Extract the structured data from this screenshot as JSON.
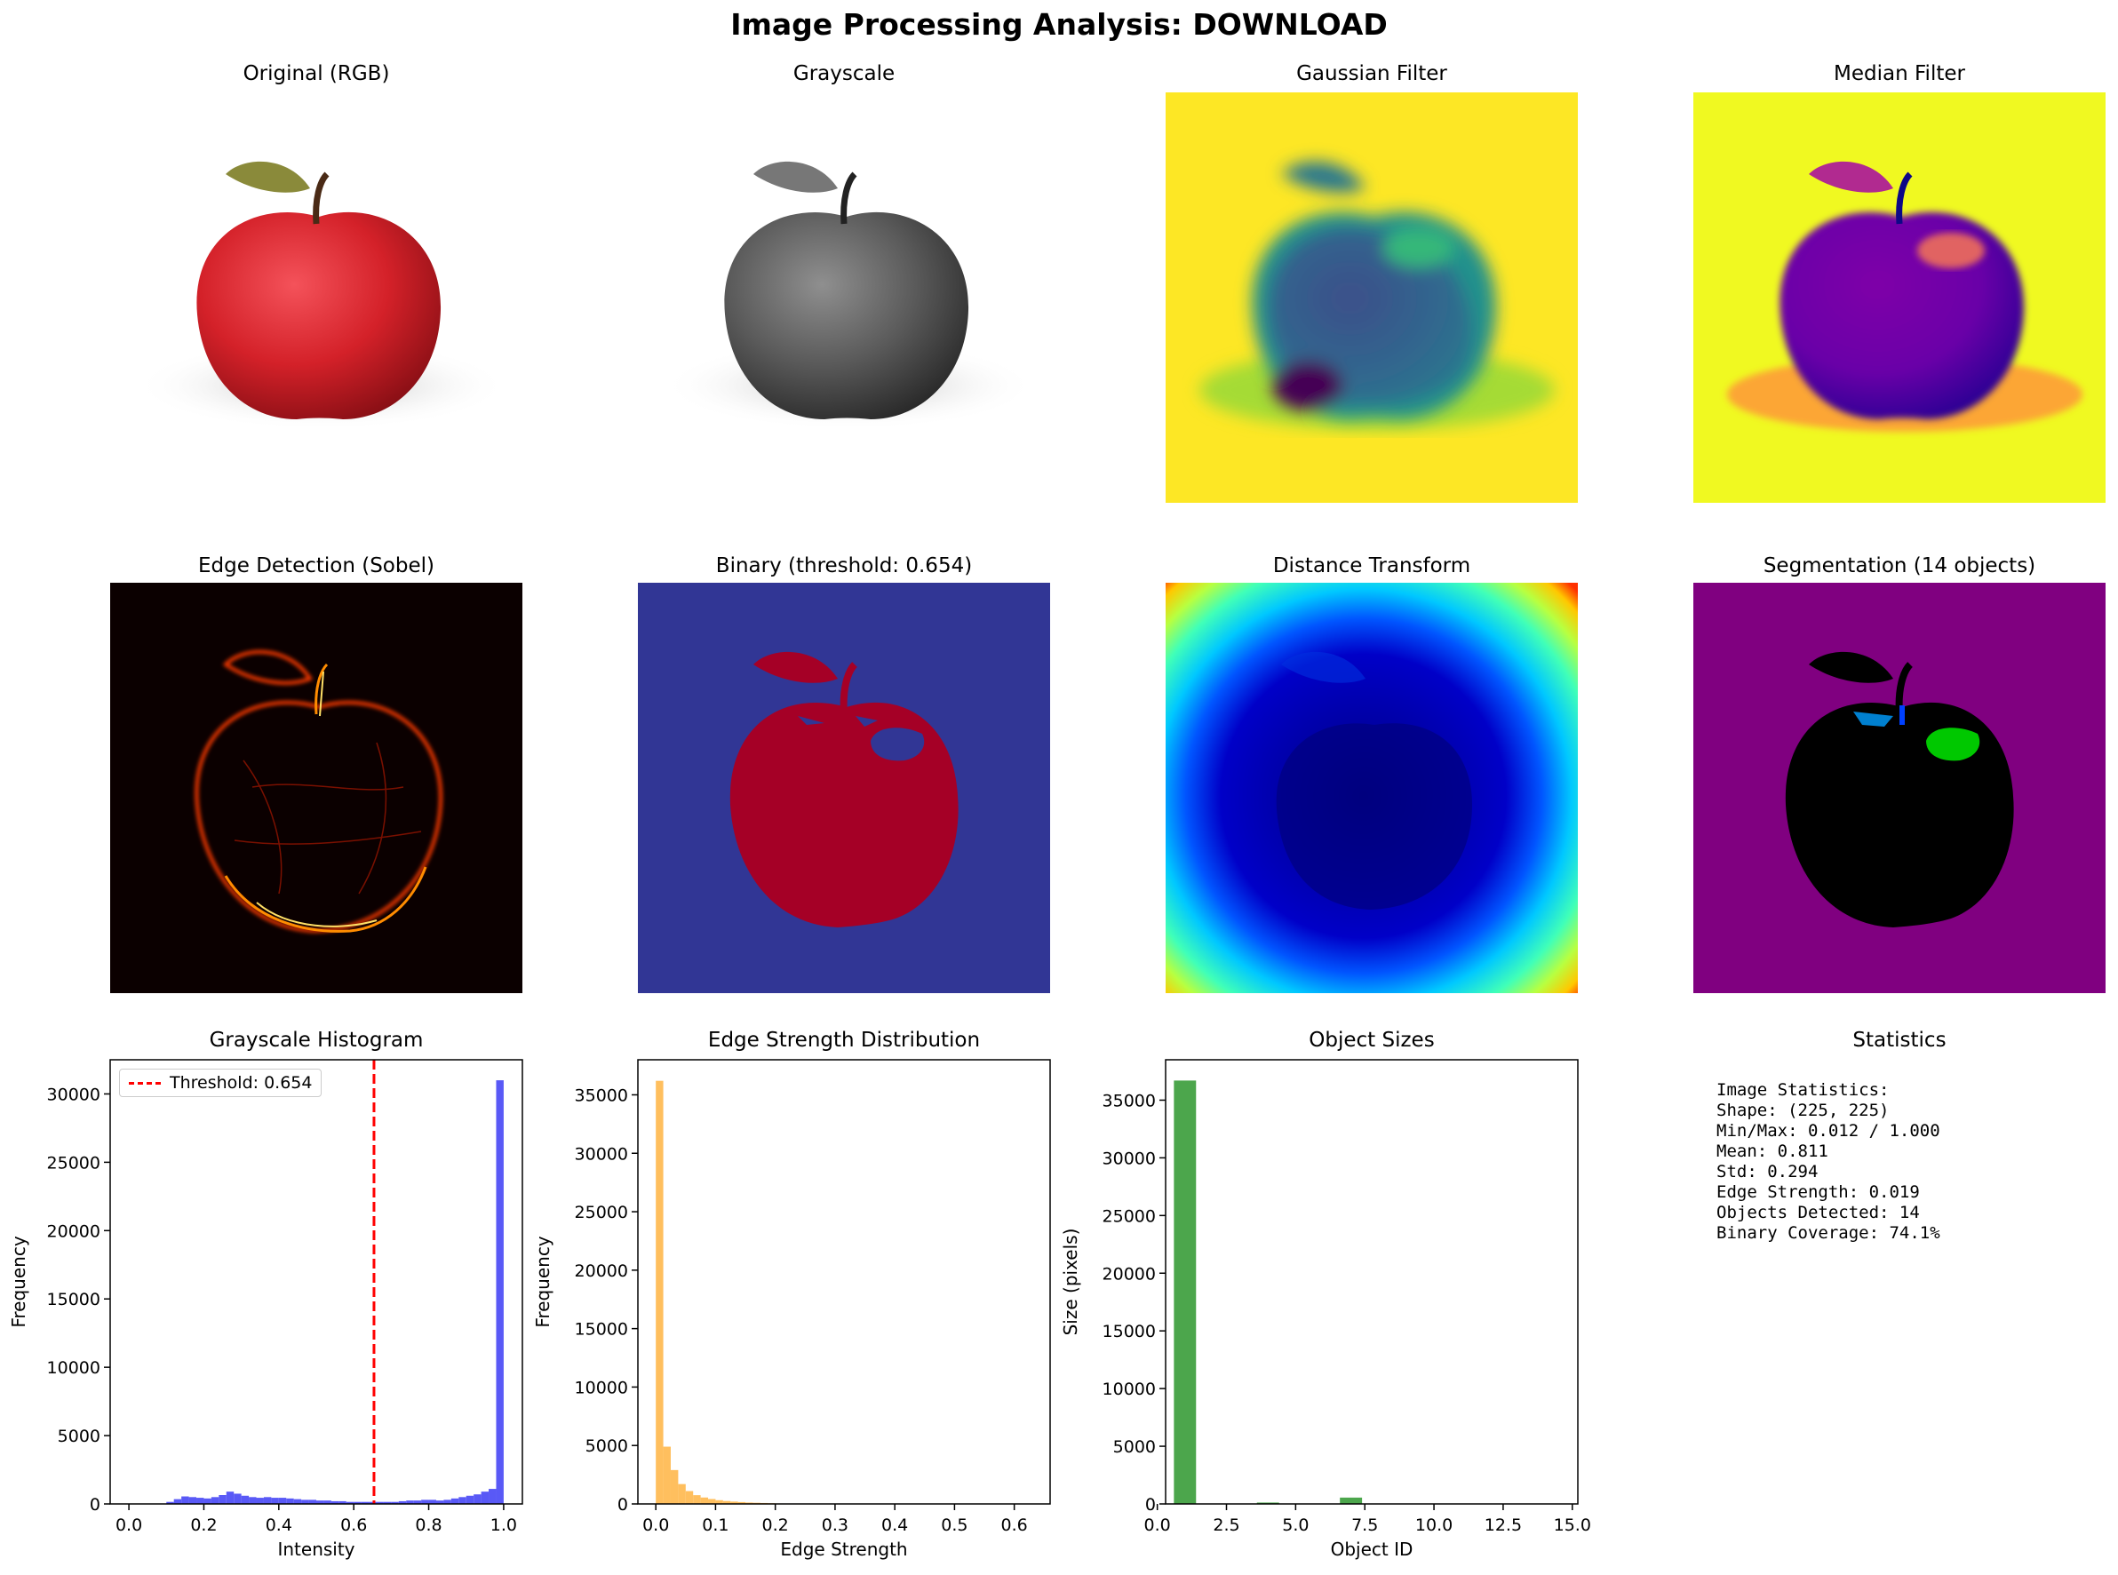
{
  "suptitle": "Image Processing Analysis: DOWNLOAD",
  "panels": {
    "original": "Original (RGB)",
    "grayscale": "Grayscale",
    "gaussian": "Gaussian Filter",
    "median": "Median Filter",
    "edge": "Edge Detection (Sobel)",
    "binary": "Binary (threshold: 0.654)",
    "distance": "Distance Transform",
    "segmentation": "Segmentation (14 objects)",
    "statistics": "Statistics"
  },
  "stats_lines": [
    "Image Statistics:",
    "Shape: (225, 225)",
    "Min/Max: 0.012 / 1.000",
    "Mean: 0.811",
    "Std: 0.294",
    "Edge Strength: 0.019",
    "Objects Detected: 14",
    "Binary Coverage: 74.1%"
  ],
  "colors": {
    "hist_blue": "#5050f5",
    "edge_orange": "#ffb84d",
    "size_green": "#4ca64c",
    "threshold_red": "#ff0000"
  },
  "chart_data": [
    {
      "type": "bar",
      "title": "Grayscale Histogram",
      "xlabel": "Intensity",
      "ylabel": "Frequency",
      "xlim": [
        -0.05,
        1.05
      ],
      "ylim": [
        0,
        32500
      ],
      "xticks": [
        0.0,
        0.2,
        0.4,
        0.6,
        0.8,
        1.0
      ],
      "xtick_labels": [
        "0.0",
        "0.2",
        "0.4",
        "0.6",
        "0.8",
        "1.0"
      ],
      "yticks": [
        0,
        5000,
        10000,
        15000,
        20000,
        25000,
        30000
      ],
      "ytick_labels": [
        "0",
        "5000",
        "10000",
        "15000",
        "20000",
        "25000",
        "30000"
      ],
      "bin_width": 0.02,
      "bin_starts": [
        0.1,
        0.12,
        0.14,
        0.16,
        0.18,
        0.2,
        0.22,
        0.24,
        0.26,
        0.28,
        0.3,
        0.32,
        0.34,
        0.36,
        0.38,
        0.4,
        0.42,
        0.44,
        0.46,
        0.48,
        0.5,
        0.52,
        0.54,
        0.56,
        0.58,
        0.6,
        0.62,
        0.64,
        0.66,
        0.68,
        0.7,
        0.72,
        0.74,
        0.76,
        0.78,
        0.8,
        0.82,
        0.84,
        0.86,
        0.88,
        0.9,
        0.92,
        0.94,
        0.96,
        0.98
      ],
      "values": [
        150,
        350,
        550,
        500,
        450,
        400,
        500,
        650,
        900,
        750,
        600,
        500,
        450,
        500,
        450,
        450,
        400,
        350,
        300,
        300,
        250,
        250,
        200,
        200,
        150,
        150,
        150,
        150,
        150,
        150,
        150,
        200,
        250,
        250,
        300,
        300,
        250,
        300,
        400,
        500,
        600,
        700,
        900,
        1100,
        31000
      ],
      "threshold": {
        "x": 0.654,
        "label": "Threshold: 0.654"
      },
      "legend": "top-left"
    },
    {
      "type": "bar",
      "title": "Edge Strength Distribution",
      "xlabel": "Edge Strength",
      "ylabel": "Frequency",
      "xlim": [
        -0.03,
        0.66
      ],
      "ylim": [
        0,
        38000
      ],
      "xticks": [
        0.0,
        0.1,
        0.2,
        0.3,
        0.4,
        0.5,
        0.6
      ],
      "xtick_labels": [
        "0.0",
        "0.1",
        "0.2",
        "0.3",
        "0.4",
        "0.5",
        "0.6"
      ],
      "yticks": [
        0,
        5000,
        10000,
        15000,
        20000,
        25000,
        30000,
        35000
      ],
      "ytick_labels": [
        "0",
        "5000",
        "10000",
        "15000",
        "20000",
        "25000",
        "30000",
        "35000"
      ],
      "bin_width": 0.0125,
      "bin_starts": [
        0.0,
        0.0125,
        0.025,
        0.0375,
        0.05,
        0.0625,
        0.075,
        0.0875,
        0.1,
        0.1125,
        0.125,
        0.1375,
        0.15,
        0.1625,
        0.175,
        0.1875,
        0.2
      ],
      "values": [
        36200,
        4900,
        2900,
        1700,
        1100,
        750,
        550,
        420,
        320,
        250,
        200,
        160,
        120,
        100,
        80,
        60,
        40
      ]
    },
    {
      "type": "bar",
      "title": "Object Sizes",
      "xlabel": "Object ID",
      "ylabel": "Size (pixels)",
      "xlim": [
        0.3,
        15.2
      ],
      "ylim": [
        0,
        38500
      ],
      "xticks": [
        0.0,
        2.5,
        5.0,
        7.5,
        10.0,
        12.5,
        15.0
      ],
      "xtick_labels": [
        "0.0",
        "2.5",
        "5.0",
        "7.5",
        "10.0",
        "12.5",
        "15.0"
      ],
      "yticks": [
        0,
        5000,
        10000,
        15000,
        20000,
        25000,
        30000,
        35000
      ],
      "ytick_labels": [
        "0",
        "5000",
        "10000",
        "15000",
        "20000",
        "25000",
        "30000",
        "35000"
      ],
      "categories": [
        1,
        2,
        3,
        4,
        5,
        6,
        7,
        8,
        9,
        10,
        11,
        12,
        13,
        14
      ],
      "values": [
        36700,
        10,
        15,
        120,
        10,
        30,
        550,
        20,
        5,
        5,
        5,
        5,
        5,
        5
      ]
    }
  ]
}
